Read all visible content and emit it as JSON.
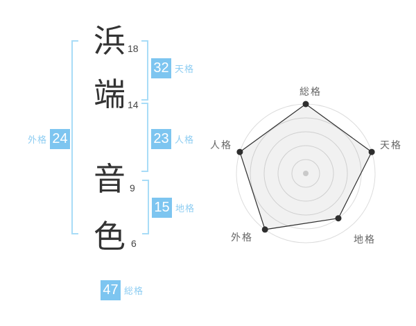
{
  "name": {
    "characters": [
      {
        "char": "浜",
        "strokes": "18"
      },
      {
        "char": "端",
        "strokes": "14"
      },
      {
        "char": "音",
        "strokes": "9"
      },
      {
        "char": "色",
        "strokes": "6"
      }
    ]
  },
  "kaku": {
    "tenkaku": {
      "value": "32",
      "label": "天格"
    },
    "jinkaku": {
      "value": "23",
      "label": "人格"
    },
    "chikaku": {
      "value": "15",
      "label": "地格"
    },
    "gaikaku": {
      "value": "24",
      "label": "外格"
    },
    "soukaku": {
      "value": "47",
      "label": "総格"
    }
  },
  "chart_data": {
    "type": "radar",
    "categories": [
      "総格",
      "天格",
      "地格",
      "外格",
      "人格"
    ],
    "values": [
      5,
      5,
      4,
      5,
      5
    ],
    "max": 5,
    "rings": 5,
    "grid": "concentric-circles",
    "legend_position": "none",
    "title": ""
  },
  "colors": {
    "badge_blue": "#7dc5f0",
    "label_blue": "#8ecdf2",
    "bracket_blue": "#a8dcf7",
    "ink": "#333333",
    "ring_gray": "#dcdcdc",
    "radar_label_gray": "#666666"
  }
}
